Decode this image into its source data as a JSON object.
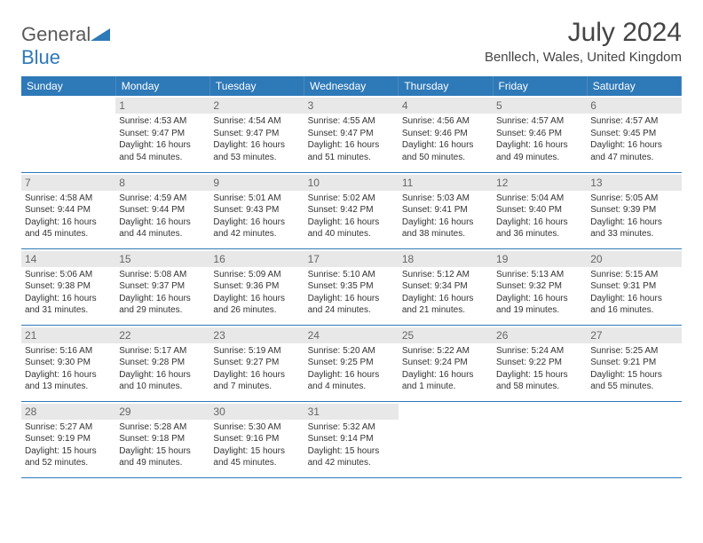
{
  "brand": {
    "name_part1": "General",
    "name_part2": "Blue"
  },
  "title": "July 2024",
  "location": "Benllech, Wales, United Kingdom",
  "colors": {
    "header_bg": "#2e79b8",
    "header_text": "#ffffff",
    "daynum_bg": "#e8e8e8",
    "cell_border": "#2e79b8",
    "logo_gray": "#5a5a5a",
    "logo_blue": "#2e79b8"
  },
  "weekdays": [
    "Sunday",
    "Monday",
    "Tuesday",
    "Wednesday",
    "Thursday",
    "Friday",
    "Saturday"
  ],
  "weeks": [
    [
      null,
      {
        "d": "1",
        "sr": "Sunrise: 4:53 AM",
        "ss": "Sunset: 9:47 PM",
        "dl": "Daylight: 16 hours and 54 minutes."
      },
      {
        "d": "2",
        "sr": "Sunrise: 4:54 AM",
        "ss": "Sunset: 9:47 PM",
        "dl": "Daylight: 16 hours and 53 minutes."
      },
      {
        "d": "3",
        "sr": "Sunrise: 4:55 AM",
        "ss": "Sunset: 9:47 PM",
        "dl": "Daylight: 16 hours and 51 minutes."
      },
      {
        "d": "4",
        "sr": "Sunrise: 4:56 AM",
        "ss": "Sunset: 9:46 PM",
        "dl": "Daylight: 16 hours and 50 minutes."
      },
      {
        "d": "5",
        "sr": "Sunrise: 4:57 AM",
        "ss": "Sunset: 9:46 PM",
        "dl": "Daylight: 16 hours and 49 minutes."
      },
      {
        "d": "6",
        "sr": "Sunrise: 4:57 AM",
        "ss": "Sunset: 9:45 PM",
        "dl": "Daylight: 16 hours and 47 minutes."
      }
    ],
    [
      {
        "d": "7",
        "sr": "Sunrise: 4:58 AM",
        "ss": "Sunset: 9:44 PM",
        "dl": "Daylight: 16 hours and 45 minutes."
      },
      {
        "d": "8",
        "sr": "Sunrise: 4:59 AM",
        "ss": "Sunset: 9:44 PM",
        "dl": "Daylight: 16 hours and 44 minutes."
      },
      {
        "d": "9",
        "sr": "Sunrise: 5:01 AM",
        "ss": "Sunset: 9:43 PM",
        "dl": "Daylight: 16 hours and 42 minutes."
      },
      {
        "d": "10",
        "sr": "Sunrise: 5:02 AM",
        "ss": "Sunset: 9:42 PM",
        "dl": "Daylight: 16 hours and 40 minutes."
      },
      {
        "d": "11",
        "sr": "Sunrise: 5:03 AM",
        "ss": "Sunset: 9:41 PM",
        "dl": "Daylight: 16 hours and 38 minutes."
      },
      {
        "d": "12",
        "sr": "Sunrise: 5:04 AM",
        "ss": "Sunset: 9:40 PM",
        "dl": "Daylight: 16 hours and 36 minutes."
      },
      {
        "d": "13",
        "sr": "Sunrise: 5:05 AM",
        "ss": "Sunset: 9:39 PM",
        "dl": "Daylight: 16 hours and 33 minutes."
      }
    ],
    [
      {
        "d": "14",
        "sr": "Sunrise: 5:06 AM",
        "ss": "Sunset: 9:38 PM",
        "dl": "Daylight: 16 hours and 31 minutes."
      },
      {
        "d": "15",
        "sr": "Sunrise: 5:08 AM",
        "ss": "Sunset: 9:37 PM",
        "dl": "Daylight: 16 hours and 29 minutes."
      },
      {
        "d": "16",
        "sr": "Sunrise: 5:09 AM",
        "ss": "Sunset: 9:36 PM",
        "dl": "Daylight: 16 hours and 26 minutes."
      },
      {
        "d": "17",
        "sr": "Sunrise: 5:10 AM",
        "ss": "Sunset: 9:35 PM",
        "dl": "Daylight: 16 hours and 24 minutes."
      },
      {
        "d": "18",
        "sr": "Sunrise: 5:12 AM",
        "ss": "Sunset: 9:34 PM",
        "dl": "Daylight: 16 hours and 21 minutes."
      },
      {
        "d": "19",
        "sr": "Sunrise: 5:13 AM",
        "ss": "Sunset: 9:32 PM",
        "dl": "Daylight: 16 hours and 19 minutes."
      },
      {
        "d": "20",
        "sr": "Sunrise: 5:15 AM",
        "ss": "Sunset: 9:31 PM",
        "dl": "Daylight: 16 hours and 16 minutes."
      }
    ],
    [
      {
        "d": "21",
        "sr": "Sunrise: 5:16 AM",
        "ss": "Sunset: 9:30 PM",
        "dl": "Daylight: 16 hours and 13 minutes."
      },
      {
        "d": "22",
        "sr": "Sunrise: 5:17 AM",
        "ss": "Sunset: 9:28 PM",
        "dl": "Daylight: 16 hours and 10 minutes."
      },
      {
        "d": "23",
        "sr": "Sunrise: 5:19 AM",
        "ss": "Sunset: 9:27 PM",
        "dl": "Daylight: 16 hours and 7 minutes."
      },
      {
        "d": "24",
        "sr": "Sunrise: 5:20 AM",
        "ss": "Sunset: 9:25 PM",
        "dl": "Daylight: 16 hours and 4 minutes."
      },
      {
        "d": "25",
        "sr": "Sunrise: 5:22 AM",
        "ss": "Sunset: 9:24 PM",
        "dl": "Daylight: 16 hours and 1 minute."
      },
      {
        "d": "26",
        "sr": "Sunrise: 5:24 AM",
        "ss": "Sunset: 9:22 PM",
        "dl": "Daylight: 15 hours and 58 minutes."
      },
      {
        "d": "27",
        "sr": "Sunrise: 5:25 AM",
        "ss": "Sunset: 9:21 PM",
        "dl": "Daylight: 15 hours and 55 minutes."
      }
    ],
    [
      {
        "d": "28",
        "sr": "Sunrise: 5:27 AM",
        "ss": "Sunset: 9:19 PM",
        "dl": "Daylight: 15 hours and 52 minutes."
      },
      {
        "d": "29",
        "sr": "Sunrise: 5:28 AM",
        "ss": "Sunset: 9:18 PM",
        "dl": "Daylight: 15 hours and 49 minutes."
      },
      {
        "d": "30",
        "sr": "Sunrise: 5:30 AM",
        "ss": "Sunset: 9:16 PM",
        "dl": "Daylight: 15 hours and 45 minutes."
      },
      {
        "d": "31",
        "sr": "Sunrise: 5:32 AM",
        "ss": "Sunset: 9:14 PM",
        "dl": "Daylight: 15 hours and 42 minutes."
      },
      null,
      null,
      null
    ]
  ]
}
